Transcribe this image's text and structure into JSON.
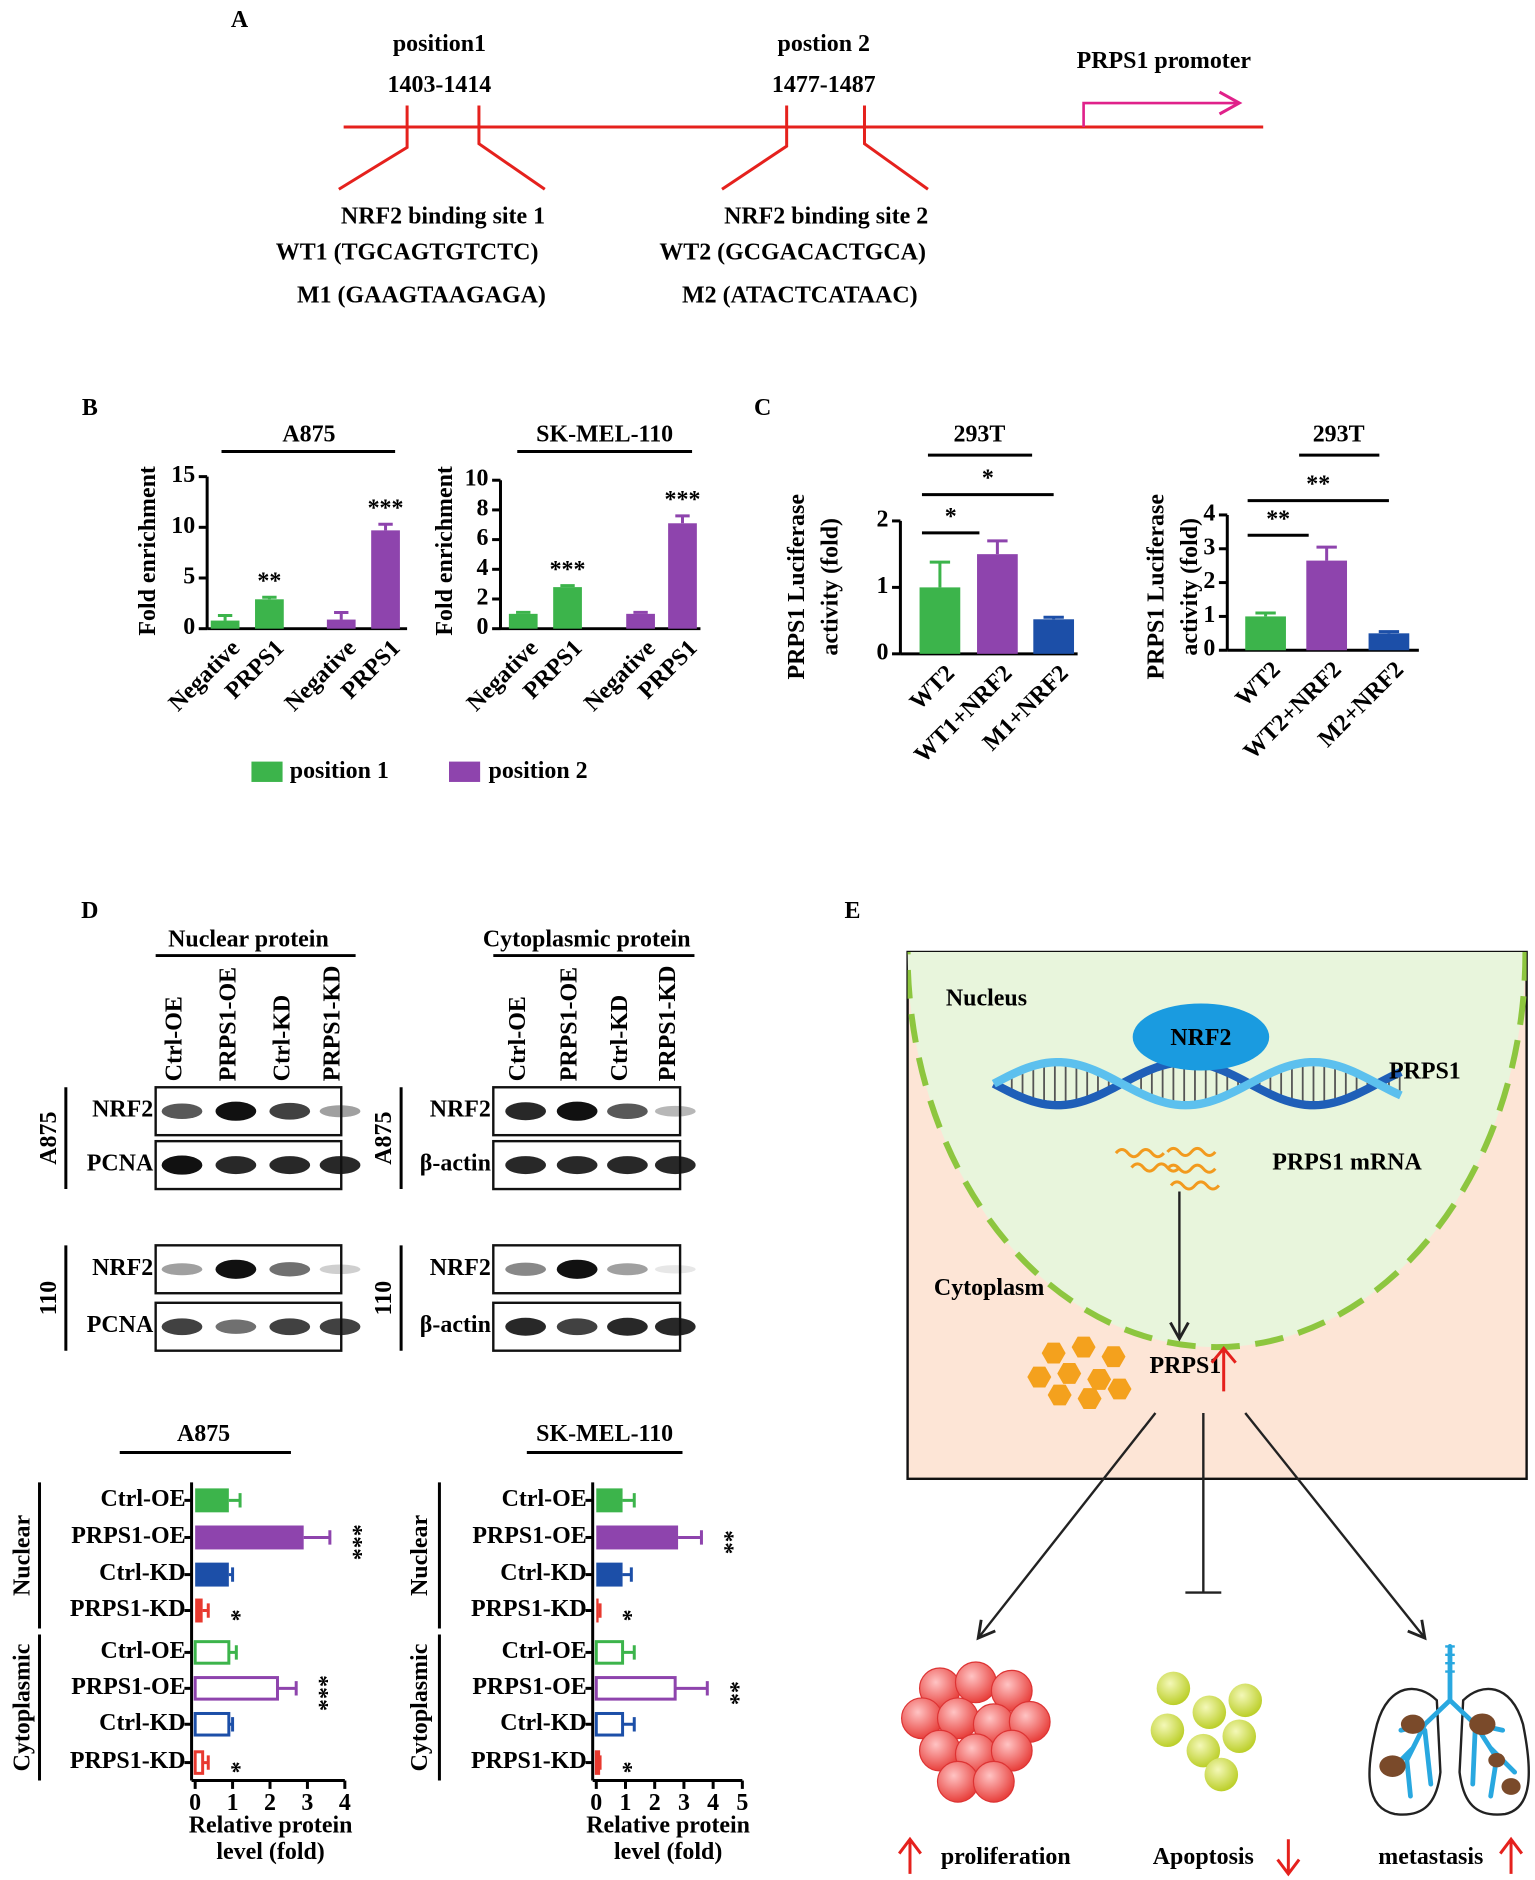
{
  "panels": [
    "A",
    "B",
    "C",
    "D",
    "E"
  ],
  "promoter_map": {
    "positions": [
      {
        "name": "position1",
        "range": "1403-1414"
      },
      {
        "name": "postion 2",
        "range": "1477-1487"
      }
    ],
    "promoter": "PRPS1 promoter",
    "sites": [
      {
        "title": "NRF2 binding site 1",
        "wild_type": "WT1 (TGCAGTGTCTC)",
        "mutant": "M1 (GAAGTAAGAGA)"
      },
      {
        "title": "NRF2 binding site 2",
        "wild_type": "WT2 (GCGACACTGCA)",
        "mutant": "M2 (ATACTCATAAC)"
      }
    ]
  },
  "chart_data": [
    {
      "type": "bar",
      "title": "A875",
      "ylabel": [
        "Fold enrichment"
      ],
      "categories": [
        "Negative",
        "PRPS1",
        "Negative",
        "PRPS1"
      ],
      "series": [
        {
          "name": "position 1",
          "color": "#3cb44b",
          "values": [
            0.8,
            2.9,
            null,
            null
          ],
          "errors": [
            0.5,
            0.2,
            null,
            null
          ]
        },
        {
          "name": "position 2",
          "color": "#8e44ad",
          "values": [
            null,
            null,
            0.9,
            9.7
          ],
          "errors": [
            null,
            null,
            0.7,
            0.6
          ]
        }
      ],
      "significance": [
        null,
        "**",
        null,
        "***"
      ],
      "ylim": [
        0,
        15
      ],
      "yticks": [
        0,
        5,
        10,
        15
      ]
    },
    {
      "type": "bar",
      "title": "SK-MEL-110",
      "ylabel": [
        "Fold enrichment"
      ],
      "categories": [
        "Negative",
        "PRPS1",
        "Negative",
        "PRPS1"
      ],
      "series": [
        {
          "name": "position 1",
          "color": "#3cb44b",
          "values": [
            1.0,
            2.8,
            null,
            null
          ],
          "errors": [
            0.1,
            0.1,
            null,
            null
          ]
        },
        {
          "name": "position 2",
          "color": "#8e44ad",
          "values": [
            null,
            null,
            1.0,
            7.1
          ],
          "errors": [
            null,
            null,
            0.1,
            0.5
          ]
        }
      ],
      "significance": [
        null,
        "***",
        null,
        "***"
      ],
      "ylim": [
        0,
        10
      ],
      "yticks": [
        0,
        2,
        4,
        6,
        8,
        10
      ]
    },
    {
      "type": "bar",
      "title": "293T",
      "ylabel": [
        "PRPS1 Luciferase",
        "activity (fold)"
      ],
      "categories": [
        "WT2",
        "WT1+NRF2",
        "M1+NRF2"
      ],
      "values": [
        1.0,
        1.5,
        0.52
      ],
      "errors": [
        0.38,
        0.2,
        0.03
      ],
      "colors": [
        "#3cb44b",
        "#8e44ad",
        "#1c4fa8"
      ],
      "comparisons": [
        {
          "from": "WT2",
          "to": "WT1+NRF2",
          "label": "*"
        },
        {
          "from": "WT2",
          "to": "M1+NRF2",
          "label": "*"
        }
      ],
      "ylim": [
        0,
        2
      ],
      "yticks": [
        0,
        1,
        2
      ]
    },
    {
      "type": "bar",
      "title": "293T",
      "ylabel": [
        "PRPS1 Luciferase",
        "activity (fold)"
      ],
      "categories": [
        "WT2",
        "WT2+NRF2",
        "M2+NRF2"
      ],
      "values": [
        1.0,
        2.65,
        0.5
      ],
      "errors": [
        0.1,
        0.4,
        0.05
      ],
      "colors": [
        "#3cb44b",
        "#8e44ad",
        "#1c4fa8"
      ],
      "comparisons": [
        {
          "from": "WT2",
          "to": "WT2+NRF2",
          "label": "**"
        },
        {
          "from": "WT2",
          "to": "M2+NRF2",
          "label": "**"
        }
      ],
      "ylim": [
        0,
        4
      ],
      "yticks": [
        0,
        1,
        2,
        3,
        4
      ]
    },
    {
      "type": "barh",
      "title": "A875",
      "xlabel": [
        "Relative protein",
        "level (fold)"
      ],
      "xlim": [
        0,
        4
      ],
      "xticks": [
        0,
        1,
        2,
        3,
        4
      ],
      "groups": [
        {
          "label": "Nuclear",
          "style": "filled",
          "categories": [
            "Ctrl-OE",
            "PRPS1-OE",
            "Ctrl-KD",
            "PRPS1-KD"
          ],
          "colors": [
            "#3cb44b",
            "#8e44ad",
            "#1c4fa8",
            "#e8392f"
          ],
          "values": [
            0.9,
            2.9,
            0.9,
            0.2
          ],
          "errors": [
            0.3,
            0.7,
            0.1,
            0.15
          ],
          "significance": [
            null,
            "***",
            null,
            "*"
          ]
        },
        {
          "label": "Cytoplasmic",
          "style": "hollow",
          "categories": [
            "Ctrl-OE",
            "PRPS1-OE",
            "Ctrl-KD",
            "PRPS1-KD"
          ],
          "colors": [
            "#3cb44b",
            "#8e44ad",
            "#1c4fa8",
            "#e8392f"
          ],
          "values": [
            0.9,
            2.2,
            0.9,
            0.2
          ],
          "errors": [
            0.2,
            0.5,
            0.1,
            0.15
          ],
          "significance": [
            null,
            "***",
            null,
            "*"
          ]
        }
      ]
    },
    {
      "type": "barh",
      "title": "SK-MEL-110",
      "xlabel": [
        "Relative protein",
        "level (fold)"
      ],
      "xlim": [
        0,
        5
      ],
      "xticks": [
        0,
        1,
        2,
        3,
        4,
        5
      ],
      "groups": [
        {
          "label": "Nuclear",
          "style": "filled",
          "categories": [
            "Ctrl-OE",
            "PRPS1-OE",
            "Ctrl-KD",
            "PRPS1-KD"
          ],
          "colors": [
            "#3cb44b",
            "#8e44ad",
            "#1c4fa8",
            "#e8392f"
          ],
          "values": [
            0.9,
            2.8,
            0.9,
            0.08
          ],
          "errors": [
            0.4,
            0.8,
            0.3,
            0.05
          ],
          "significance": [
            null,
            "**",
            null,
            "*"
          ]
        },
        {
          "label": "Cytoplasmic",
          "style": "hollow",
          "categories": [
            "Ctrl-OE",
            "PRPS1-OE",
            "Ctrl-KD",
            "PRPS1-KD"
          ],
          "colors": [
            "#3cb44b",
            "#8e44ad",
            "#1c4fa8",
            "#e8392f"
          ],
          "values": [
            0.9,
            2.7,
            0.9,
            0.08
          ],
          "errors": [
            0.4,
            1.1,
            0.4,
            0.05
          ],
          "significance": [
            null,
            "**",
            null,
            "*"
          ]
        }
      ]
    }
  ],
  "blots": [
    {
      "header": "Nuclear protein",
      "lanes": [
        "Ctrl-OE",
        "PRPS1-OE",
        "Ctrl-KD",
        "PRPS1-KD"
      ],
      "cell_lines": [
        "A875",
        "110"
      ],
      "rows": [
        "NRF2",
        "PCNA",
        "NRF2",
        "PCNA"
      ]
    },
    {
      "header": "Cytoplasmic protein",
      "lanes": [
        "Ctrl-OE",
        "PRPS1-OE",
        "Ctrl-KD",
        "PRPS1-KD"
      ],
      "cell_lines": [
        "A875",
        "110"
      ],
      "rows": [
        "NRF2",
        "β-actin",
        "NRF2",
        "β-actin"
      ]
    }
  ],
  "diagram": {
    "nucleus": "Nucleus",
    "factor": "NRF2",
    "gene": "PRPS1",
    "mrna": "PRPS1 mRNA",
    "cytoplasm": "Cytoplasm",
    "protein": "PRPS1",
    "outcomes": [
      "proliferation",
      "Apoptosis",
      "metastasis"
    ]
  }
}
